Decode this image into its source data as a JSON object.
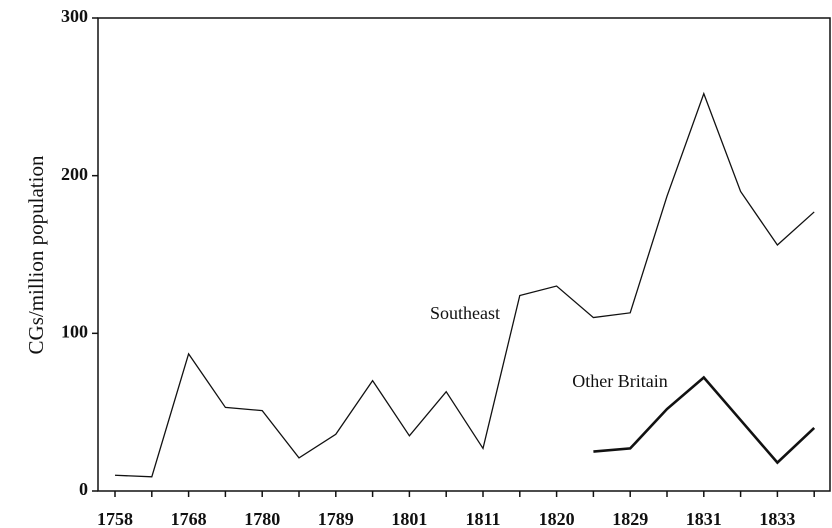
{
  "chart_data": {
    "type": "line",
    "ylabel": "CGs/million population",
    "categories": [
      "1758",
      null,
      "1768",
      null,
      "1780",
      null,
      "1789",
      null,
      "1801",
      null,
      "1811",
      null,
      "1820",
      null,
      "1829",
      null,
      "1831",
      null,
      "1833",
      null
    ],
    "series": [
      {
        "name": "Southeast",
        "color": "#111111",
        "width": 1.3,
        "values": [
          10,
          9,
          87,
          53,
          51,
          21,
          36,
          70,
          35,
          63,
          27,
          124,
          130,
          110,
          113,
          187,
          252,
          190,
          156,
          177
        ]
      },
      {
        "name": "Other Britain",
        "color": "#111111",
        "width": 2.6,
        "values": [
          null,
          null,
          null,
          null,
          null,
          null,
          null,
          null,
          null,
          null,
          null,
          null,
          null,
          25,
          27,
          52,
          72,
          45,
          18,
          40
        ]
      }
    ],
    "ylim": [
      0,
      300
    ],
    "yticks": [
      0,
      100,
      200,
      300
    ]
  }
}
